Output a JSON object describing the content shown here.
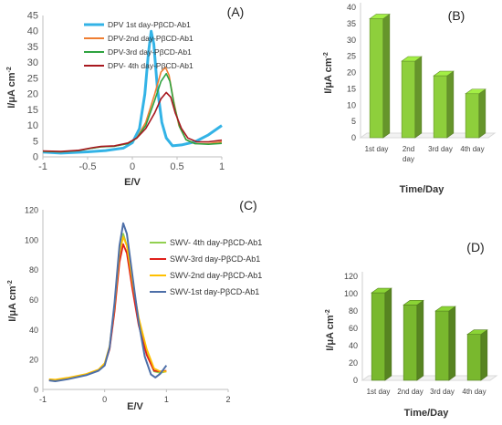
{
  "chart_data": [
    {
      "id": "A",
      "type": "line",
      "panel_label": "(A)",
      "xlabel": "E/V",
      "ylabel": "I/μA cm⁻²",
      "xlim": [
        -1,
        1
      ],
      "ylim": [
        0,
        45
      ],
      "xticks": [
        -1,
        -0.5,
        0,
        0.5,
        1
      ],
      "xtick_labels": [
        "-1",
        "-0.5",
        "0",
        "0.5",
        "1"
      ],
      "yticks": [
        0,
        5,
        10,
        15,
        20,
        25,
        30,
        35,
        40,
        45
      ],
      "legend_position": "top-right",
      "series": [
        {
          "name": "DPV 1st day-PβCD-Ab1",
          "color": "#33b3e6",
          "width": 3,
          "points": [
            [
              -1,
              1.5
            ],
            [
              -0.8,
              1.2
            ],
            [
              -0.5,
              1.6
            ],
            [
              -0.3,
              2.0
            ],
            [
              -0.1,
              2.8
            ],
            [
              0.0,
              4.5
            ],
            [
              0.08,
              9
            ],
            [
              0.14,
              20
            ],
            [
              0.18,
              33
            ],
            [
              0.21,
              40
            ],
            [
              0.24,
              36
            ],
            [
              0.28,
              22
            ],
            [
              0.33,
              11
            ],
            [
              0.38,
              6
            ],
            [
              0.45,
              3.5
            ],
            [
              0.55,
              3.8
            ],
            [
              0.7,
              4.8
            ],
            [
              0.85,
              7
            ],
            [
              1.0,
              10
            ]
          ]
        },
        {
          "name": "DPV-2nd day-PβCD-Ab1",
          "color": "#ef7e32",
          "width": 1.6,
          "points": [
            [
              -1,
              1.8
            ],
            [
              -0.8,
              1.6
            ],
            [
              -0.6,
              2.0
            ],
            [
              -0.45,
              2.8
            ],
            [
              -0.35,
              3.2
            ],
            [
              -0.2,
              3.4
            ],
            [
              -0.05,
              4.2
            ],
            [
              0.05,
              6
            ],
            [
              0.15,
              11
            ],
            [
              0.25,
              20
            ],
            [
              0.32,
              27
            ],
            [
              0.37,
              28.5
            ],
            [
              0.41,
              26
            ],
            [
              0.46,
              18
            ],
            [
              0.52,
              10
            ],
            [
              0.6,
              5.5
            ],
            [
              0.7,
              4.2
            ],
            [
              0.85,
              4.2
            ],
            [
              1.0,
              4.8
            ]
          ]
        },
        {
          "name": "DPV-3rd day-PβCD-Ab1",
          "color": "#2ea340",
          "width": 1.6,
          "points": [
            [
              -1,
              1.8
            ],
            [
              -0.8,
              1.6
            ],
            [
              -0.6,
              2.0
            ],
            [
              -0.45,
              2.8
            ],
            [
              -0.35,
              3.2
            ],
            [
              -0.2,
              3.4
            ],
            [
              -0.05,
              4.2
            ],
            [
              0.05,
              6
            ],
            [
              0.15,
              10
            ],
            [
              0.25,
              18
            ],
            [
              0.32,
              24
            ],
            [
              0.38,
              26.5
            ],
            [
              0.42,
              24
            ],
            [
              0.47,
              16
            ],
            [
              0.53,
              9.5
            ],
            [
              0.6,
              5.5
            ],
            [
              0.7,
              4.2
            ],
            [
              0.85,
              4.0
            ],
            [
              1.0,
              4.3
            ]
          ]
        },
        {
          "name": "DPV- 4th day-PβCD-Ab1",
          "color": "#a8181f",
          "width": 1.6,
          "points": [
            [
              -1,
              1.9
            ],
            [
              -0.8,
              1.7
            ],
            [
              -0.6,
              2.1
            ],
            [
              -0.45,
              2.9
            ],
            [
              -0.35,
              3.3
            ],
            [
              -0.2,
              3.5
            ],
            [
              -0.05,
              4.4
            ],
            [
              0.05,
              6
            ],
            [
              0.15,
              9
            ],
            [
              0.25,
              14
            ],
            [
              0.32,
              18.5
            ],
            [
              0.38,
              20.5
            ],
            [
              0.43,
              19
            ],
            [
              0.48,
              14
            ],
            [
              0.55,
              9
            ],
            [
              0.62,
              6
            ],
            [
              0.72,
              4.8
            ],
            [
              0.85,
              4.8
            ],
            [
              1.0,
              5.3
            ]
          ]
        }
      ]
    },
    {
      "id": "B",
      "type": "bar",
      "panel_label": "(B)",
      "xlabel": "Time/Day",
      "ylabel": "I/μA cm⁻²",
      "ylim": [
        0,
        40
      ],
      "yticks": [
        0,
        5,
        10,
        15,
        20,
        25,
        30,
        35,
        40
      ],
      "categories": [
        "1st day",
        "2nd day",
        "3rd day",
        "4th day"
      ],
      "category_lines": [
        [
          "1st day"
        ],
        [
          "2nd",
          "day"
        ],
        [
          "3rd day"
        ],
        [
          "4th day"
        ]
      ],
      "values": [
        36.5,
        23.5,
        19,
        13.5
      ],
      "bar_color": "#8ecf3c"
    },
    {
      "id": "C",
      "type": "line",
      "panel_label": "(C)",
      "xlabel": "E/V",
      "ylabel": "I/μA cm⁻²",
      "xlim": [
        -1,
        2
      ],
      "ylim": [
        0,
        120
      ],
      "xticks": [
        -1,
        0,
        1,
        2
      ],
      "xtick_labels": [
        "-1",
        "0",
        "1",
        "2"
      ],
      "yticks": [
        0,
        20,
        40,
        60,
        80,
        100,
        120
      ],
      "legend_position": "right",
      "series": [
        {
          "name": "SWV- 4th day-PβCD-Ab1",
          "color": "#92d050",
          "width": 1.8,
          "points": [
            [
              -0.9,
              6.5
            ],
            [
              -0.8,
              6.2
            ],
            [
              -0.6,
              7.5
            ],
            [
              -0.3,
              10
            ],
            [
              -0.1,
              13
            ],
            [
              0.0,
              17
            ],
            [
              0.08,
              28
            ],
            [
              0.16,
              55
            ],
            [
              0.24,
              90
            ],
            [
              0.3,
              104
            ],
            [
              0.36,
              96
            ],
            [
              0.45,
              70
            ],
            [
              0.55,
              45
            ],
            [
              0.68,
              24
            ],
            [
              0.8,
              12
            ],
            [
              0.9,
              11
            ],
            [
              1.0,
              12
            ]
          ]
        },
        {
          "name": "SWV-3rd day-PβCD-Ab1",
          "color": "#e0201b",
          "width": 1.8,
          "points": [
            [
              -0.9,
              6.3
            ],
            [
              -0.8,
              6.0
            ],
            [
              -0.6,
              7.3
            ],
            [
              -0.3,
              9.8
            ],
            [
              -0.1,
              12.8
            ],
            [
              0.0,
              16.5
            ],
            [
              0.08,
              27
            ],
            [
              0.16,
              52
            ],
            [
              0.24,
              85
            ],
            [
              0.3,
              97
            ],
            [
              0.36,
              91
            ],
            [
              0.45,
              67
            ],
            [
              0.55,
              43
            ],
            [
              0.68,
              23
            ],
            [
              0.8,
              12.5
            ],
            [
              0.9,
              12
            ],
            [
              1.0,
              12.5
            ]
          ]
        },
        {
          "name": "SWV-2nd day-PβCD-Ab1",
          "color": "#ffc000",
          "width": 1.8,
          "points": [
            [
              -0.9,
              6.8
            ],
            [
              -0.8,
              6.5
            ],
            [
              -0.6,
              7.8
            ],
            [
              -0.3,
              10.3
            ],
            [
              -0.1,
              13.3
            ],
            [
              0.0,
              17.5
            ],
            [
              0.08,
              29
            ],
            [
              0.16,
              56
            ],
            [
              0.24,
              91
            ],
            [
              0.3,
              102
            ],
            [
              0.36,
              96
            ],
            [
              0.45,
              72
            ],
            [
              0.55,
              48
            ],
            [
              0.68,
              27
            ],
            [
              0.8,
              14
            ],
            [
              0.9,
              12
            ],
            [
              1.0,
              12
            ]
          ]
        },
        {
          "name": "SWV-1st day-PβCD-Ab1",
          "color": "#4d6fa8",
          "width": 2.0,
          "points": [
            [
              -0.9,
              6.0
            ],
            [
              -0.8,
              5.5
            ],
            [
              -0.6,
              6.8
            ],
            [
              -0.3,
              9.5
            ],
            [
              -0.1,
              12.5
            ],
            [
              0.0,
              16
            ],
            [
              0.08,
              28
            ],
            [
              0.16,
              58
            ],
            [
              0.24,
              96
            ],
            [
              0.3,
              111
            ],
            [
              0.36,
              104
            ],
            [
              0.45,
              76
            ],
            [
              0.55,
              45
            ],
            [
              0.65,
              22
            ],
            [
              0.75,
              10
            ],
            [
              0.82,
              8
            ],
            [
              0.9,
              10.5
            ],
            [
              1.0,
              16
            ]
          ]
        }
      ]
    },
    {
      "id": "D",
      "type": "bar",
      "panel_label": "(D)",
      "xlabel": "Time/Day",
      "ylabel": "I/μA cm⁻²",
      "ylim": [
        0,
        120
      ],
      "yticks": [
        0,
        20,
        40,
        60,
        80,
        100,
        120
      ],
      "categories": [
        "1st day",
        "2nd day",
        "3rd day",
        "4th day"
      ],
      "category_lines": [
        [
          "1st day"
        ],
        [
          "2nd day"
        ],
        [
          "3rd day"
        ],
        [
          "4th day"
        ]
      ],
      "values": [
        101,
        87,
        80,
        53
      ],
      "bar_color": "#79b82e"
    }
  ]
}
